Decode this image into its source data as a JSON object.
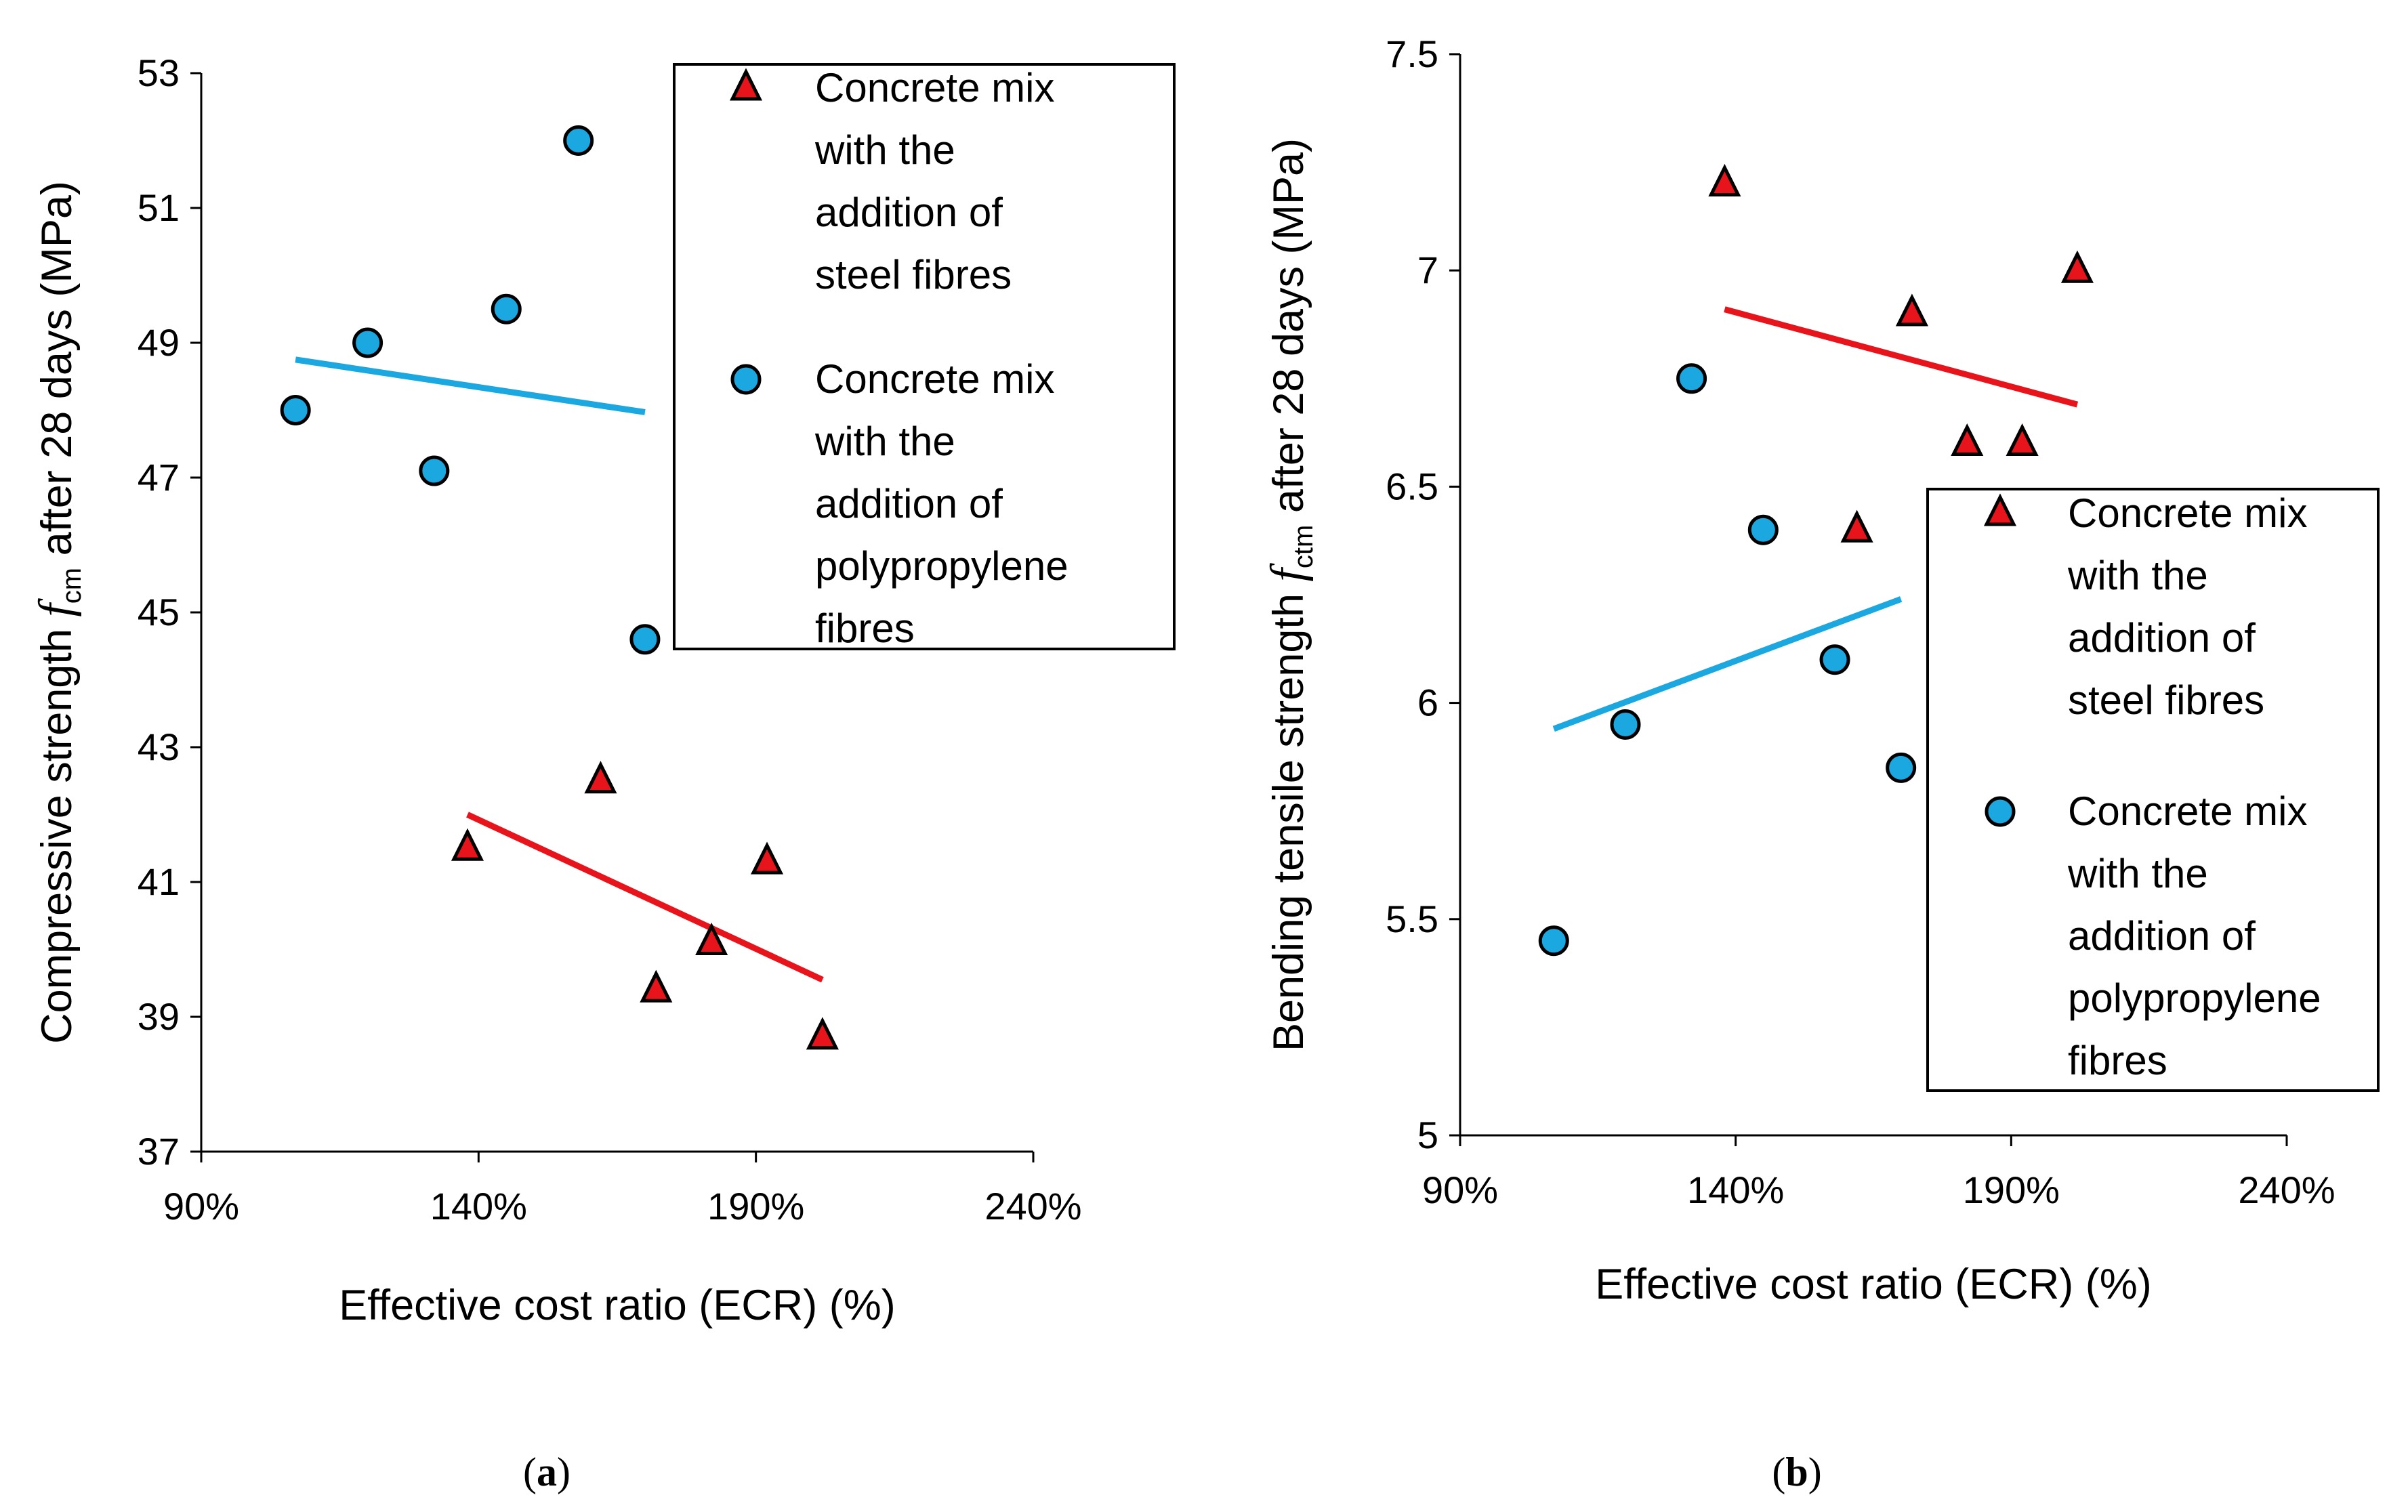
{
  "chart_data": [
    {
      "panel_label": "a",
      "type": "scatter",
      "xlabel": "Effective cost ratio (ECR) (%)",
      "ylabel_parts": {
        "prefix": "Compressive strength ",
        "symbol": "f",
        "subscript": "cm",
        "suffix": " after 28 days (MPa)"
      },
      "xlim": [
        90,
        240
      ],
      "ylim": [
        37,
        53
      ],
      "x_ticks": [
        90,
        140,
        190,
        240
      ],
      "x_tick_labels": [
        "90%",
        "140%",
        "190%",
        "240%"
      ],
      "y_ticks": [
        37,
        39,
        41,
        43,
        45,
        47,
        49,
        51,
        53
      ],
      "y_tick_labels": [
        "37",
        "39",
        "41",
        "43",
        "45",
        "47",
        "49",
        "51",
        "53"
      ],
      "grid": false,
      "legend_position": "top-right",
      "series": [
        {
          "name": "Concrete mix with the addition of steel fibres",
          "legend_lines": [
            "Concrete mix",
            "with the",
            "addition of",
            "steel fibres"
          ],
          "marker": "triangle",
          "color": "#e8141b",
          "points": [
            [
              138,
              41.5
            ],
            [
              162,
              42.5
            ],
            [
              172,
              39.4
            ],
            [
              182,
              40.1
            ],
            [
              192,
              41.3
            ],
            [
              202,
              38.7
            ]
          ],
          "trendline": [
            [
              138,
              42.0
            ],
            [
              202,
              39.55
            ]
          ]
        },
        {
          "name": "Concrete mix with the addition of polypropylene fibres",
          "legend_lines": [
            "Concrete mix",
            "with the",
            "addition of",
            "polypropylene",
            "fibres"
          ],
          "marker": "circle",
          "color": "#1ba8e0",
          "points": [
            [
              107,
              48.0
            ],
            [
              120,
              49.0
            ],
            [
              132,
              47.1
            ],
            [
              145,
              49.5
            ],
            [
              158,
              52.0
            ],
            [
              170,
              44.6
            ]
          ],
          "trendline": [
            [
              107,
              48.75
            ],
            [
              170,
              47.97
            ]
          ]
        }
      ]
    },
    {
      "panel_label": "b",
      "type": "scatter",
      "xlabel": "Effective cost ratio (ECR) (%)",
      "ylabel_parts": {
        "prefix": "Bending tensile strength ",
        "symbol": "f",
        "subscript": "ctm",
        "suffix": " after 28 days (MPa)"
      },
      "xlim": [
        90,
        240
      ],
      "ylim": [
        5,
        7.5
      ],
      "x_ticks": [
        90,
        140,
        190,
        240
      ],
      "x_tick_labels": [
        "90%",
        "140%",
        "190%",
        "240%"
      ],
      "y_ticks": [
        5,
        5.5,
        6,
        6.5,
        7,
        7.5
      ],
      "y_tick_labels": [
        "5",
        "5.5",
        "6",
        "6.5",
        "7",
        "7.5"
      ],
      "grid": false,
      "legend_position": "center-right",
      "series": [
        {
          "name": "Concrete mix with the addition of steel fibres",
          "legend_lines": [
            "Concrete mix",
            "with the",
            "addition of",
            "steel fibres"
          ],
          "marker": "triangle",
          "color": "#e8141b",
          "points": [
            [
              138,
              7.2
            ],
            [
              162,
              6.4
            ],
            [
              172,
              6.9
            ],
            [
              182,
              6.6
            ],
            [
              192,
              6.6
            ],
            [
              202,
              7.0
            ]
          ],
          "trendline": [
            [
              138,
              6.91
            ],
            [
              202,
              6.69
            ]
          ]
        },
        {
          "name": "Concrete mix with the addition of polypropylene fibres",
          "legend_lines": [
            "Concrete mix",
            "with the",
            "addition of",
            "polypropylene",
            "fibres"
          ],
          "marker": "circle",
          "color": "#1ba8e0",
          "points": [
            [
              107,
              5.45
            ],
            [
              120,
              5.95
            ],
            [
              132,
              6.75
            ],
            [
              145,
              6.4
            ],
            [
              158,
              6.1
            ],
            [
              170,
              5.85
            ]
          ],
          "trendline": [
            [
              107,
              5.94
            ],
            [
              170,
              6.24
            ]
          ]
        }
      ]
    }
  ]
}
